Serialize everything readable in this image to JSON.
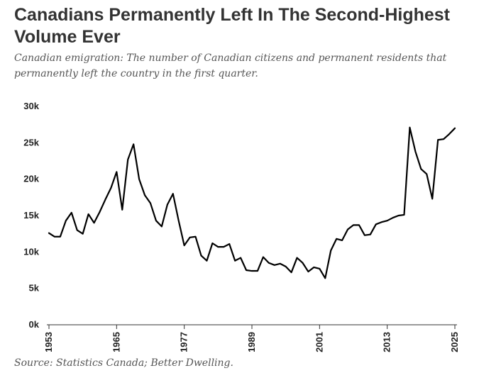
{
  "header": {
    "title": "Canadians Permanently Left In The Second-Highest Volume Ever",
    "subtitle": "Canadian emigration: The number of Canadian citizens and permanent residents that permanently left the country in the first quarter."
  },
  "footer": {
    "source": "Source: Statistics Canada; Better Dwelling."
  },
  "colors": {
    "line": "#000000",
    "axis": "#333333",
    "text": "#333333"
  },
  "chart_data": {
    "type": "line",
    "title": "Canadians Permanently Left In The Second-Highest Volume Ever",
    "xlabel": "",
    "ylabel": "",
    "ylim": [
      0,
      30000
    ],
    "xlim": [
      1953,
      2025
    ],
    "grid": false,
    "legend": "none",
    "y_ticks": [
      0,
      5000,
      10000,
      15000,
      20000,
      25000,
      30000
    ],
    "y_tick_labels": [
      "0k",
      "5k",
      "10k",
      "15k",
      "20k",
      "25k",
      "30k"
    ],
    "x_ticks": [
      1953,
      1965,
      1977,
      1989,
      2001,
      2013,
      2025
    ],
    "x_tick_labels": [
      "1953",
      "1965",
      "1977",
      "1989",
      "2001",
      "2013",
      "2025"
    ],
    "series": [
      {
        "x": [
          1953,
          1954,
          1955,
          1956,
          1957,
          1958,
          1959,
          1960,
          1961,
          1962,
          1963,
          1964,
          1965,
          1966,
          1967,
          1968,
          1969,
          1970,
          1971,
          1972,
          1973,
          1974,
          1975,
          1976,
          1977,
          1978,
          1979,
          1980,
          1981,
          1982,
          1983,
          1984,
          1985,
          1986,
          1987,
          1988,
          1989,
          1990,
          1991,
          1992,
          1993,
          1994,
          1995,
          1996,
          1997,
          1998,
          1999,
          2000,
          2001,
          2002,
          2003,
          2004,
          2005,
          2006,
          2007,
          2008,
          2009,
          2010,
          2011,
          2012,
          2013,
          2014,
          2015,
          2016,
          2017,
          2018,
          2019,
          2020,
          2021,
          2022,
          2023,
          2024,
          2025
        ],
        "values": [
          12600,
          12100,
          12100,
          14300,
          15400,
          13000,
          12500,
          15200,
          14000,
          15500,
          17200,
          18800,
          21000,
          15800,
          22700,
          24800,
          20000,
          17800,
          16700,
          14300,
          13500,
          16500,
          18000,
          14300,
          10900,
          12000,
          12100,
          9500,
          8800,
          11200,
          10700,
          10700,
          11100,
          8800,
          9200,
          7500,
          7400,
          7400,
          9300,
          8500,
          8200,
          8400,
          8000,
          7200,
          9200,
          8500,
          7300,
          7900,
          7700,
          6400,
          10200,
          11800,
          11600,
          13100,
          13700,
          13700,
          12300,
          12400,
          13800,
          14100,
          14300,
          14700,
          15000,
          15100,
          27100,
          23800,
          21400,
          20700,
          17300,
          25400,
          25500,
          26200,
          27000
        ]
      }
    ]
  }
}
